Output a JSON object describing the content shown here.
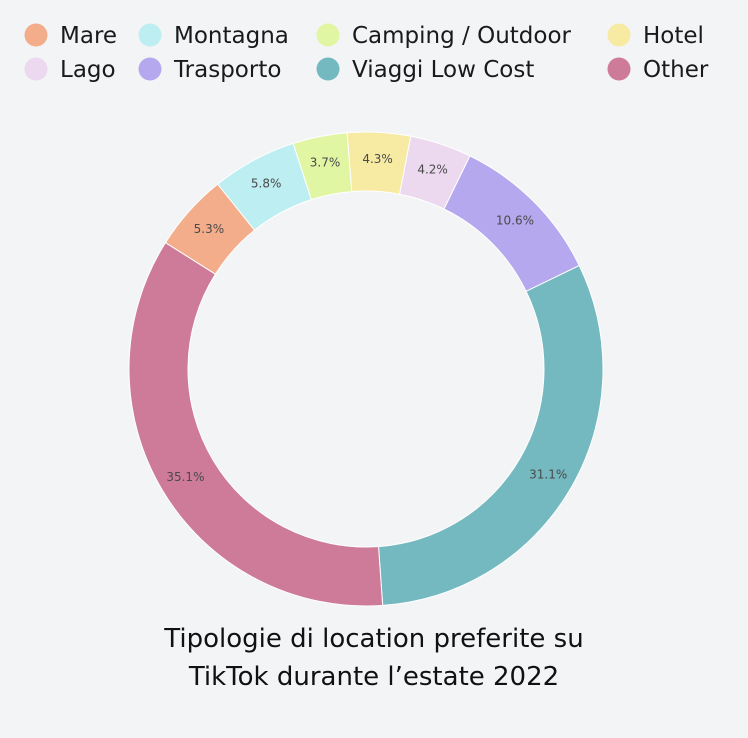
{
  "chart_data": {
    "type": "pie",
    "style": "donut",
    "title": "Tipologie di location preferite su TikTok durante l’estate 2022",
    "title_lines": [
      "Tipologie di location preferite su",
      "TikTok durante l’estate 2022"
    ],
    "legend_position": "top",
    "unit": "%",
    "slices": [
      {
        "name": "Mare",
        "value": 5.3,
        "label": "5.3%",
        "color": "#f4ad8b"
      },
      {
        "name": "Montagna",
        "value": 5.8,
        "label": "5.8%",
        "color": "#bdeef2"
      },
      {
        "name": "Camping / Outdoor",
        "value": 3.7,
        "label": "3.7%",
        "color": "#e0f6a2"
      },
      {
        "name": "Hotel",
        "value": 4.3,
        "label": "4.3%",
        "color": "#f7eba3"
      },
      {
        "name": "Lago",
        "value": 4.2,
        "label": "4.2%",
        "color": "#ecd8ef"
      },
      {
        "name": "Trasporto",
        "value": 10.6,
        "label": "10.6%",
        "color": "#b5a8ee"
      },
      {
        "name": "Viaggi Low Cost",
        "value": 31.1,
        "label": "31.1%",
        "color": "#74b8c0"
      },
      {
        "name": "Other",
        "value": 35.1,
        "label": "35.1%",
        "color": "#cd7b99"
      }
    ]
  }
}
